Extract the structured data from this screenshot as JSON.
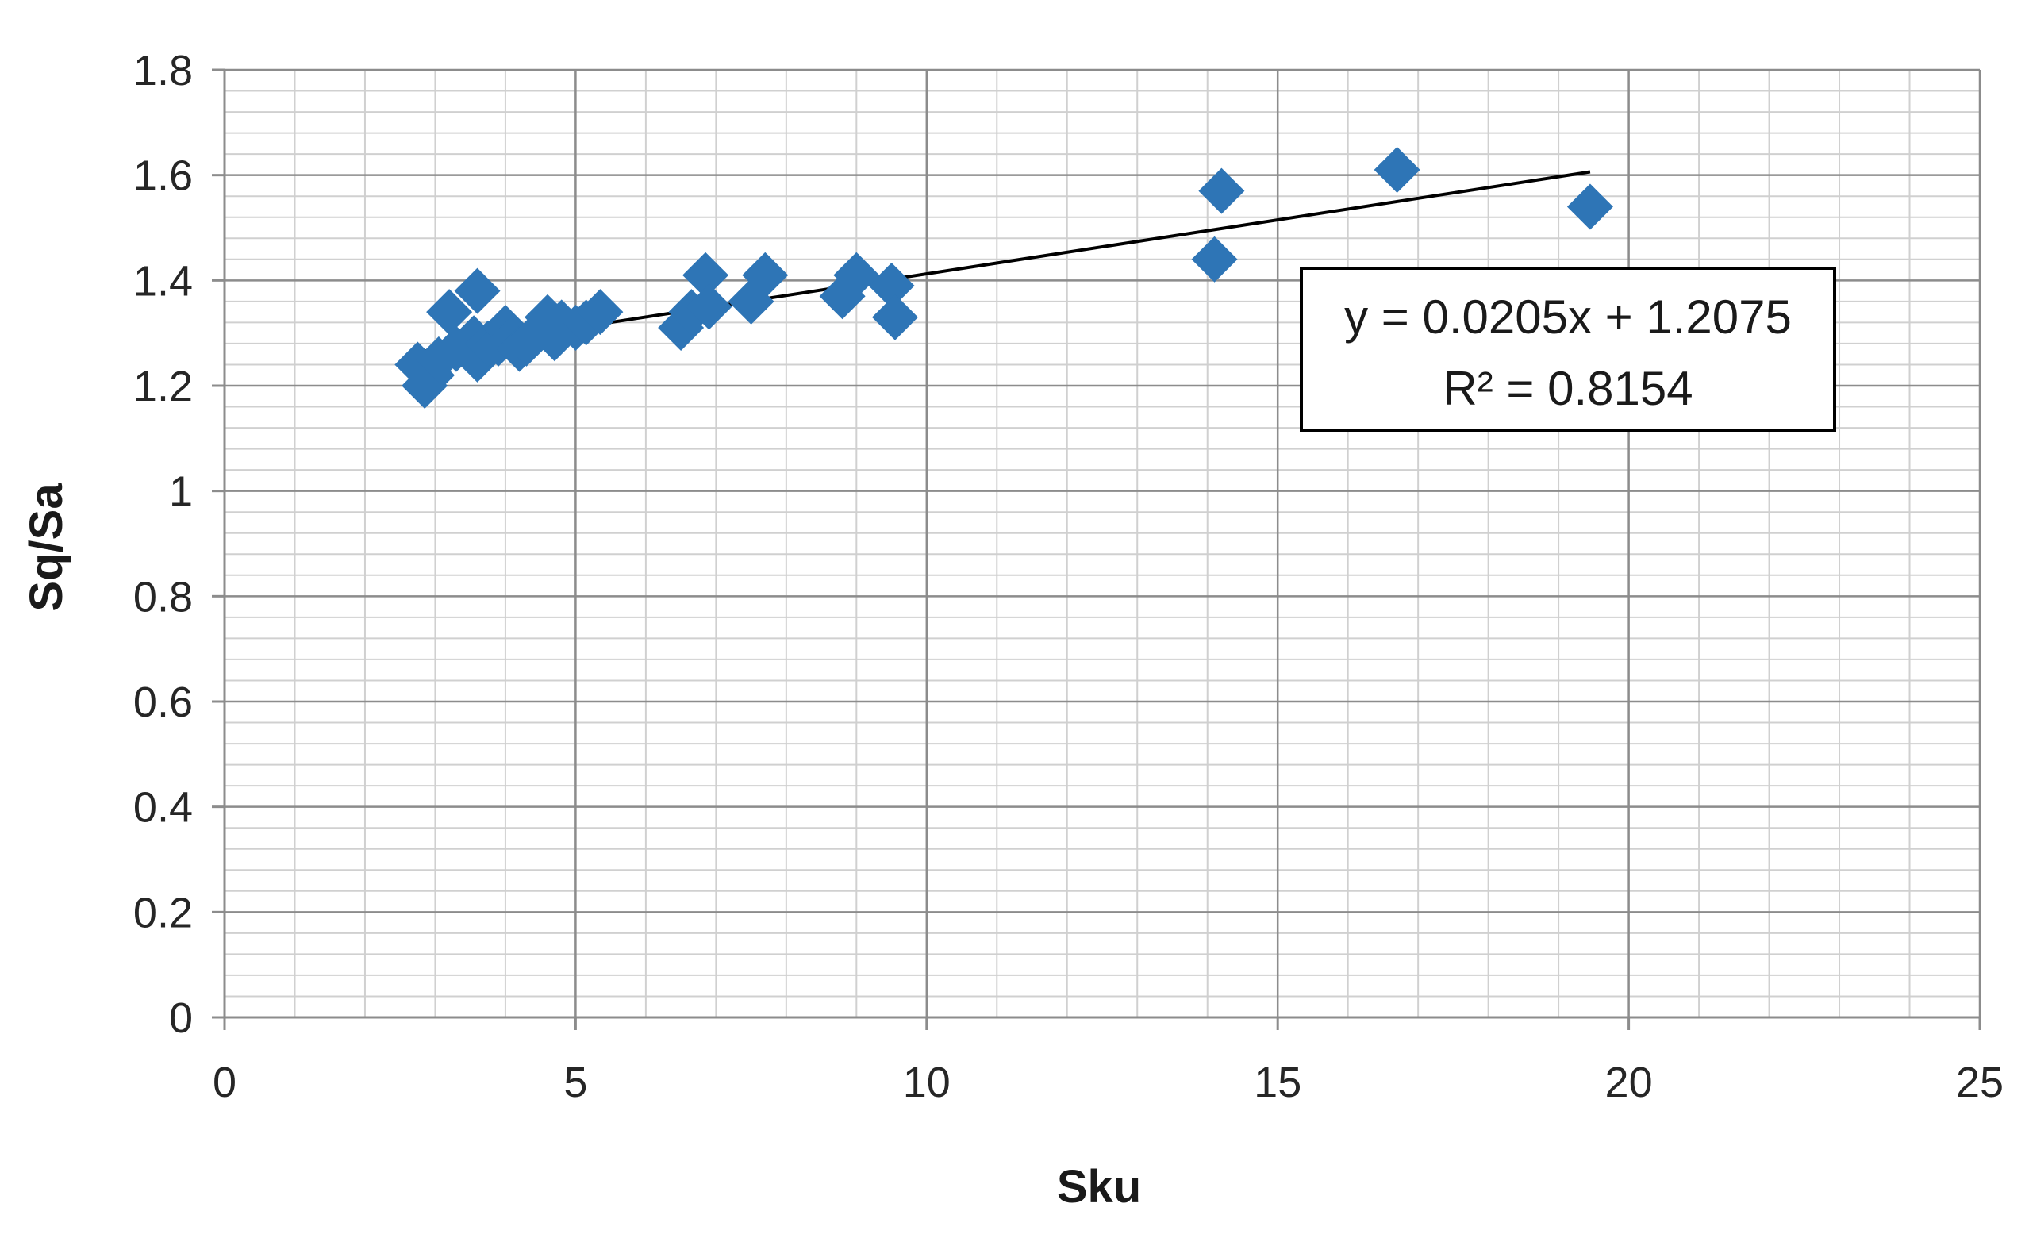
{
  "chart_data": {
    "type": "scatter",
    "title": "",
    "xlabel": "Sku",
    "ylabel": "Sq/Sa",
    "xlim": [
      0,
      25
    ],
    "ylim": [
      0,
      1.8
    ],
    "x_ticks": [
      "0",
      "5",
      "10",
      "15",
      "20",
      "25"
    ],
    "y_ticks": [
      "0",
      "0.2",
      "0.4",
      "0.6",
      "0.8",
      "1",
      "1.2",
      "1.4",
      "1.6",
      "1.8"
    ],
    "grid": true,
    "marker_color": "#2E75B6",
    "trendline_color": "#000000",
    "series": [
      {
        "points": [
          [
            2.75,
            1.24
          ],
          [
            2.85,
            1.2
          ],
          [
            2.95,
            1.22
          ],
          [
            3.05,
            1.25
          ],
          [
            3.2,
            1.34
          ],
          [
            3.3,
            1.27
          ],
          [
            3.45,
            1.27
          ],
          [
            3.55,
            1.29
          ],
          [
            3.6,
            1.25
          ],
          [
            3.6,
            1.38
          ],
          [
            3.75,
            1.28
          ],
          [
            3.9,
            1.28
          ],
          [
            4.0,
            1.31
          ],
          [
            4.1,
            1.29
          ],
          [
            4.2,
            1.27
          ],
          [
            4.3,
            1.28
          ],
          [
            4.45,
            1.3
          ],
          [
            4.6,
            1.33
          ],
          [
            4.7,
            1.29
          ],
          [
            4.8,
            1.32
          ],
          [
            5.0,
            1.31
          ],
          [
            5.15,
            1.32
          ],
          [
            5.35,
            1.34
          ],
          [
            6.5,
            1.31
          ],
          [
            6.65,
            1.34
          ],
          [
            6.85,
            1.41
          ],
          [
            6.9,
            1.35
          ],
          [
            7.5,
            1.36
          ],
          [
            7.7,
            1.41
          ],
          [
            8.8,
            1.37
          ],
          [
            9.0,
            1.41
          ],
          [
            9.5,
            1.39
          ],
          [
            9.55,
            1.33
          ],
          [
            14.1,
            1.44
          ],
          [
            14.2,
            1.57
          ],
          [
            16.7,
            1.61
          ],
          [
            19.45,
            1.54
          ]
        ]
      }
    ],
    "trendline": {
      "slope": 0.0205,
      "intercept": 1.2075,
      "x_range": [
        2.75,
        19.45
      ]
    },
    "annotations": {
      "equation": "y = 0.0205x + 1.2075",
      "r_squared": "R² = 0.8154"
    }
  }
}
